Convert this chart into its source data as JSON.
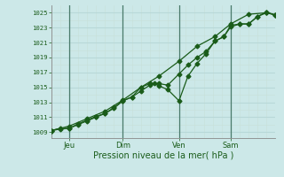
{
  "xlabel": "Pression niveau de la mer( hPa )",
  "background_color": "#cce8e8",
  "grid_color_major": "#b8d8d8",
  "grid_color_minor": "#d0e8e0",
  "line_color": "#1a5c1a",
  "yticks": [
    1009,
    1011,
    1013,
    1015,
    1017,
    1019,
    1021,
    1023,
    1025
  ],
  "ylim": [
    1008.2,
    1026.0
  ],
  "xlim": [
    0,
    100
  ],
  "xtick_positions": [
    8,
    32,
    57,
    80
  ],
  "xtick_labels": [
    "Jeu",
    "Dim",
    "Ven",
    "Sam"
  ],
  "vline_positions": [
    8,
    32,
    57,
    80
  ],
  "series1_x": [
    0,
    4,
    8,
    12,
    16,
    20,
    24,
    28,
    32,
    36,
    40,
    44,
    48,
    52,
    57,
    61,
    65,
    69,
    73,
    77,
    80,
    84,
    88,
    92,
    96,
    100
  ],
  "series1_y": [
    1009.2,
    1009.5,
    1009.5,
    1010.1,
    1010.6,
    1011.1,
    1011.5,
    1012.3,
    1013.2,
    1013.7,
    1014.5,
    1015.3,
    1015.5,
    1015.3,
    1016.8,
    1018.0,
    1019.0,
    1019.8,
    1021.2,
    1021.8,
    1023.3,
    1023.5,
    1023.5,
    1024.5,
    1025.1,
    1024.7
  ],
  "series2_x": [
    0,
    4,
    8,
    12,
    16,
    20,
    24,
    28,
    32,
    36,
    40,
    44,
    46,
    48,
    52,
    57,
    61,
    65,
    69,
    73,
    77,
    80,
    84,
    88,
    92,
    96,
    100
  ],
  "series2_y": [
    1009.2,
    1009.4,
    1009.5,
    1010.0,
    1010.5,
    1011.0,
    1011.5,
    1012.2,
    1013.2,
    1013.7,
    1015.0,
    1015.5,
    1015.5,
    1015.2,
    1014.7,
    1013.2,
    1016.5,
    1018.2,
    1019.5,
    1021.2,
    1021.8,
    1023.1,
    1023.5,
    1023.5,
    1024.5,
    1025.0,
    1024.7
  ],
  "series3_x": [
    0,
    8,
    16,
    24,
    32,
    40,
    48,
    57,
    65,
    73,
    80,
    88,
    96,
    100
  ],
  "series3_y": [
    1009.2,
    1009.8,
    1010.8,
    1011.8,
    1013.3,
    1015.0,
    1016.5,
    1018.5,
    1020.5,
    1021.8,
    1023.5,
    1024.8,
    1025.0,
    1024.7
  ]
}
